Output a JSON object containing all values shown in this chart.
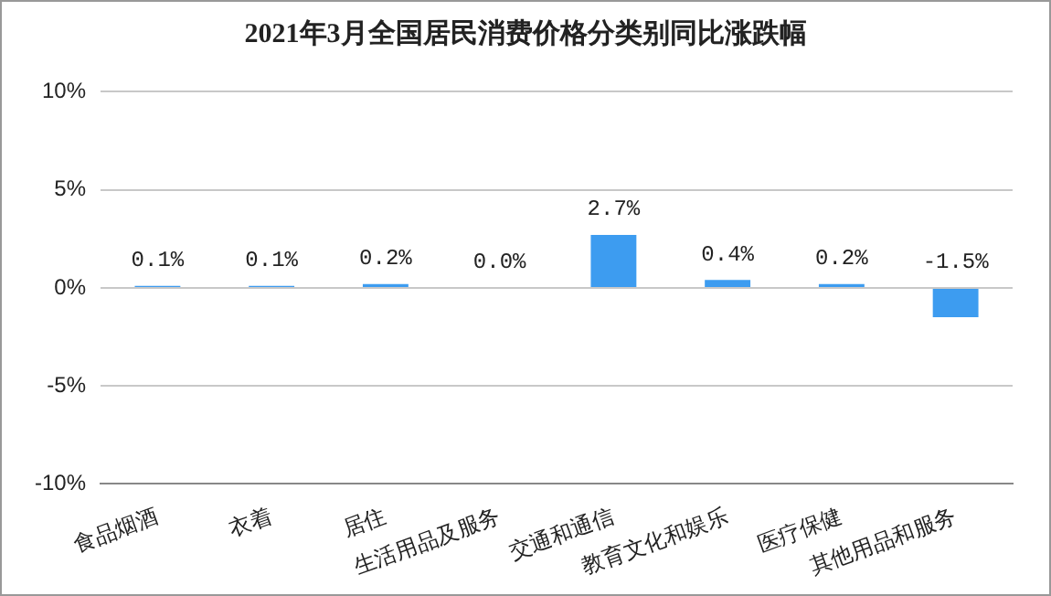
{
  "chart_data": {
    "type": "bar",
    "title": "2021年3月全国居民消费价格分类别同比涨跌幅",
    "categories": [
      "食品烟酒",
      "衣着",
      "居住",
      "生活用品及服务",
      "交通和通信",
      "教育文化和娱乐",
      "医疗保健",
      "其他用品和服务"
    ],
    "values": [
      0.1,
      0.1,
      0.2,
      0.0,
      2.7,
      0.4,
      0.2,
      -1.5
    ],
    "value_labels": [
      "0.1%",
      "0.1%",
      "0.2%",
      "0.0%",
      "2.7%",
      "0.4%",
      "0.2%",
      "-1.5%"
    ],
    "color": "#3d9cf0",
    "ylim": [
      -10,
      10
    ],
    "yticks": [
      {
        "value": -10,
        "label": "-10%"
      },
      {
        "value": -5,
        "label": "-5%"
      },
      {
        "value": 0,
        "label": "0%"
      },
      {
        "value": 5,
        "label": "5%"
      },
      {
        "value": 10,
        "label": "10%"
      }
    ],
    "grid": "y",
    "legend": false
  }
}
